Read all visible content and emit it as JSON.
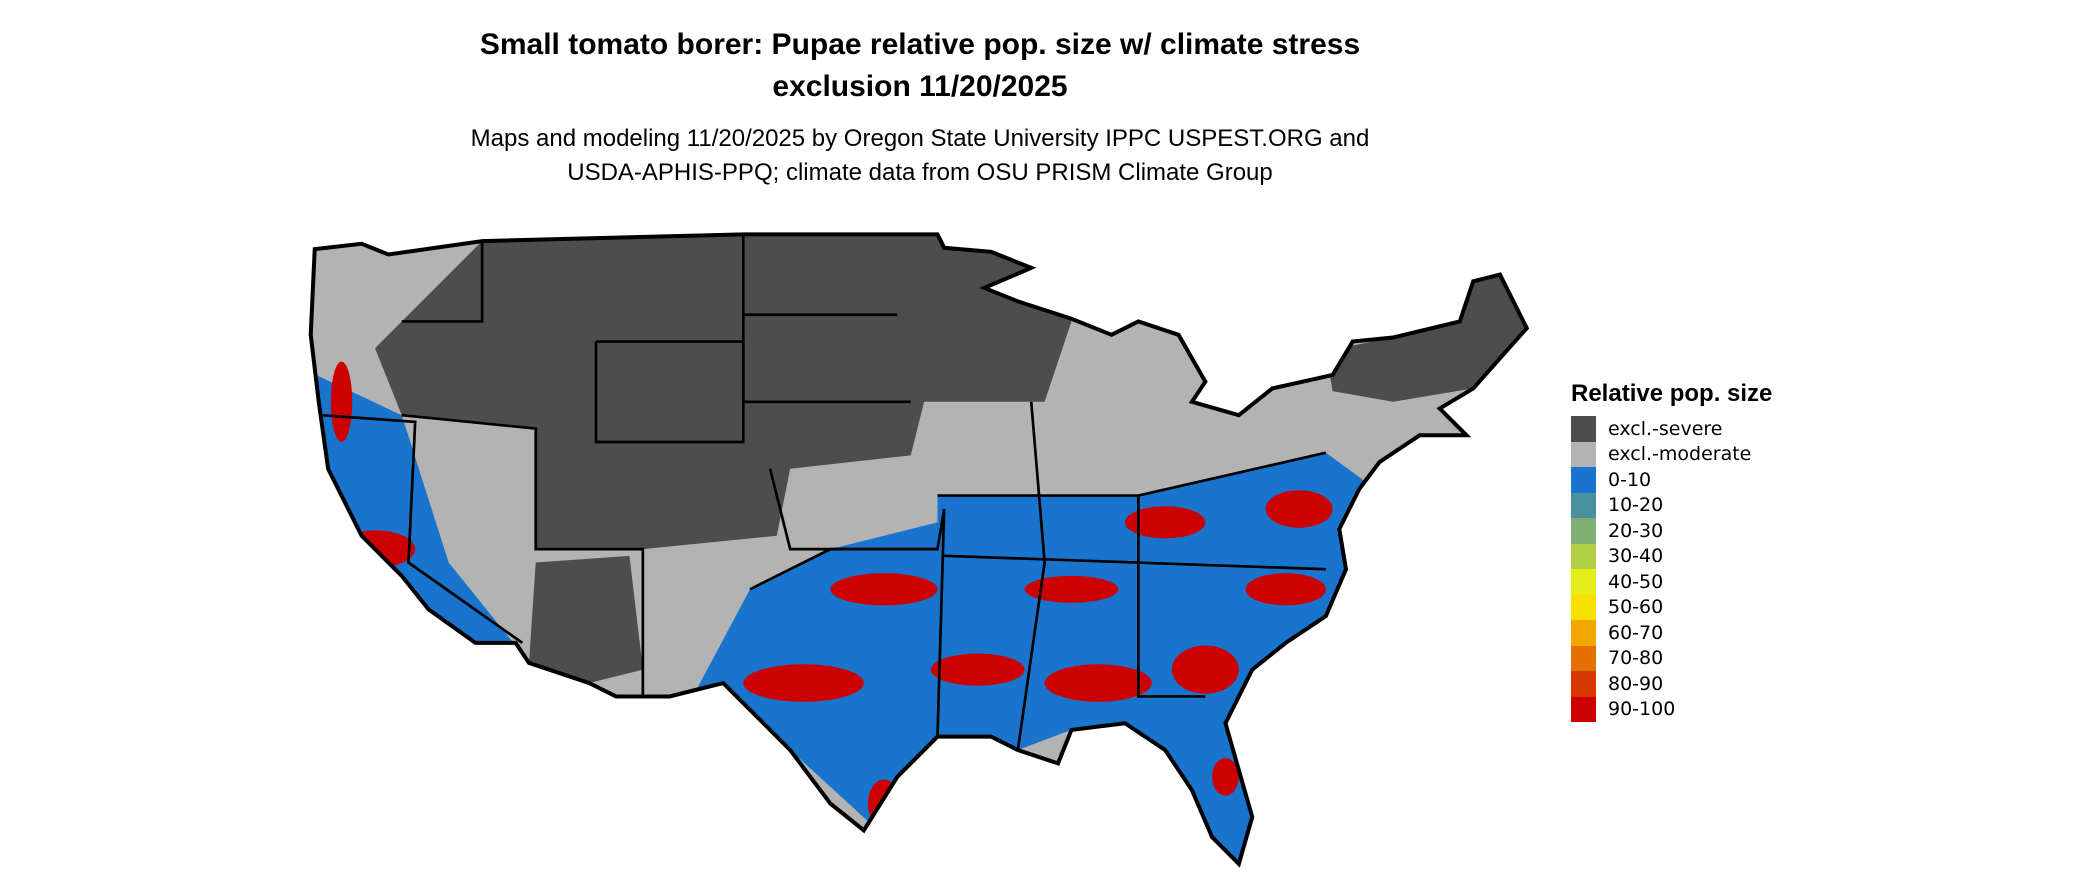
{
  "title_lines": [
    "Small tomato borer: Pupae relative pop. size w/ climate stress",
    "exclusion 11/20/2025"
  ],
  "subtitle_lines": [
    "Maps and modeling 11/20/2025 by Oregon State University IPPC USPEST.ORG and",
    "USDA-APHIS-PPQ; climate data from OSU PRISM Climate Group"
  ],
  "legend": {
    "title": "Relative pop. size",
    "items": [
      {
        "label": "excl.-severe",
        "color": "#4d4d4d"
      },
      {
        "label": "excl.-moderate",
        "color": "#b3b3b3"
      },
      {
        "label": "0-10",
        "color": "#1874cd"
      },
      {
        "label": "10-20",
        "color": "#4a919e"
      },
      {
        "label": "20-30",
        "color": "#7faf72"
      },
      {
        "label": "30-40",
        "color": "#b2d047"
      },
      {
        "label": "40-50",
        "color": "#e5ee19"
      },
      {
        "label": "50-60",
        "color": "#f8e000"
      },
      {
        "label": "60-70",
        "color": "#f0a800"
      },
      {
        "label": "70-80",
        "color": "#e47000"
      },
      {
        "label": "80-90",
        "color": "#d83800"
      },
      {
        "label": "90-100",
        "color": "#cd0000"
      }
    ]
  },
  "map": {
    "region": "Contiguous United States",
    "border_color": "#000000"
  }
}
